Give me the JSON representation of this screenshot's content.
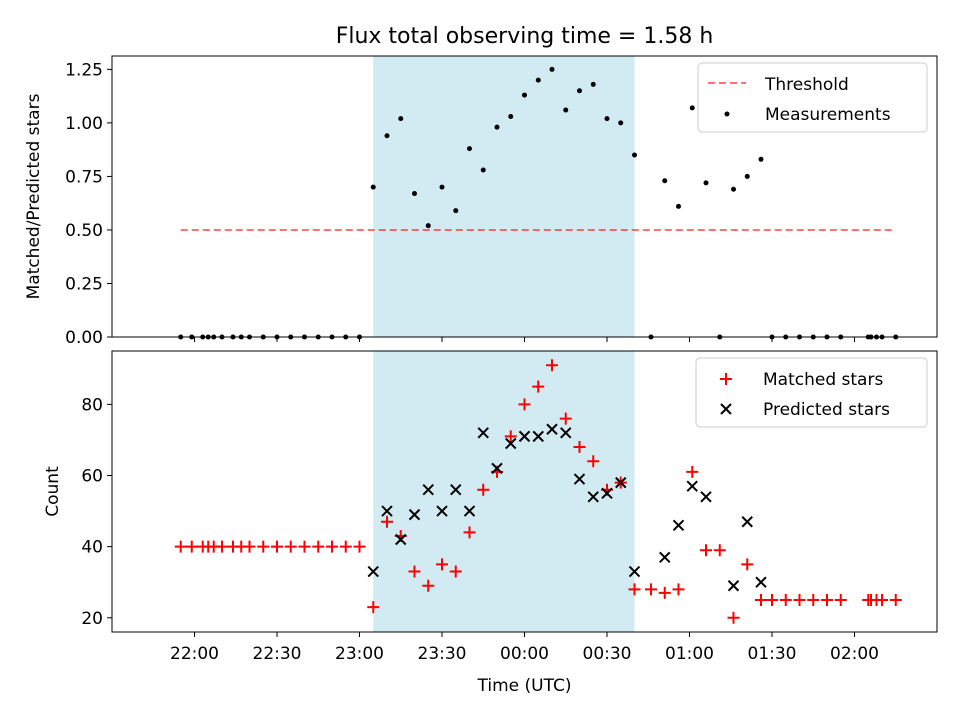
{
  "chart_data": [
    {
      "type": "scatter",
      "title": "Flux total observing time = 1.58 h",
      "xlabel": "",
      "ylabel": "Matched/Predicted stars",
      "ylim": [
        0,
        1.3125
      ],
      "y_ticks": [
        0,
        0.25,
        0.5,
        0.75,
        1.0,
        1.25
      ],
      "y_tick_labels": [
        "0.00",
        "0.25",
        "0.50",
        "0.75",
        "1.00",
        "1.25"
      ],
      "legend": {
        "position": "top-right",
        "entries": [
          "Threshold",
          "Measurements"
        ]
      },
      "colors": {
        "threshold": "#ff0000",
        "measurements": "#000000",
        "observing_window": "#add8e6"
      },
      "observing_window": {
        "start": "23:05",
        "end": "00:40"
      },
      "threshold": {
        "name": "Threshold",
        "value": 0.5,
        "x_start": "21:55",
        "x_end": "02:15"
      },
      "series": [
        {
          "name": "Measurements",
          "x": [
            "21:55",
            "21:59",
            "22:03",
            "22:05",
            "22:07",
            "22:10",
            "22:14",
            "22:17",
            "22:20",
            "22:25",
            "22:30",
            "22:35",
            "22:40",
            "22:45",
            "22:50",
            "22:55",
            "23:00",
            "23:05",
            "23:10",
            "23:15",
            "23:20",
            "23:25",
            "23:30",
            "23:35",
            "23:40",
            "23:45",
            "23:50",
            "23:55",
            "00:00",
            "00:05",
            "00:10",
            "00:15",
            "00:20",
            "00:25",
            "00:30",
            "00:35",
            "00:40",
            "00:46",
            "00:51",
            "00:56",
            "01:01",
            "01:06",
            "01:11",
            "01:16",
            "01:21",
            "01:26",
            "01:30",
            "01:35",
            "01:40",
            "01:45",
            "01:50",
            "01:55",
            "02:05",
            "02:06",
            "02:08",
            "02:10",
            "02:15"
          ],
          "values": [
            0,
            0,
            0,
            0,
            0,
            0,
            0,
            0,
            0,
            0,
            0,
            0,
            0,
            0,
            0,
            0,
            0,
            0.7,
            0.94,
            1.02,
            0.67,
            0.52,
            0.7,
            0.59,
            0.88,
            0.78,
            0.98,
            1.03,
            1.13,
            1.2,
            1.25,
            1.06,
            1.15,
            1.18,
            1.02,
            1.0,
            0.85,
            0,
            0.73,
            0.61,
            1.07,
            0.72,
            0,
            0.69,
            0.75,
            0.83,
            0,
            0,
            0,
            0,
            0,
            0,
            0,
            0,
            0,
            0,
            0
          ]
        }
      ]
    },
    {
      "type": "scatter",
      "title": "",
      "xlabel": "Time (UTC)",
      "ylabel": "Count",
      "ylim": [
        16,
        95
      ],
      "y_ticks": [
        20,
        40,
        60,
        80
      ],
      "y_tick_labels": [
        "20",
        "40",
        "60",
        "80"
      ],
      "x_ticks": [
        "22:00",
        "22:30",
        "23:00",
        "23:30",
        "00:00",
        "00:30",
        "01:00",
        "01:30",
        "02:00"
      ],
      "x_tick_labels": [
        "22:00",
        "22:30",
        "23:00",
        "23:30",
        "00:00",
        "00:30",
        "01:00",
        "01:30",
        "02:00"
      ],
      "legend": {
        "position": "top-right",
        "entries": [
          "Matched stars",
          "Predicted stars"
        ]
      },
      "colors": {
        "matched": "#ff0000",
        "predicted": "#000000",
        "observing_window": "#add8e6"
      },
      "observing_window": {
        "start": "23:05",
        "end": "00:40"
      },
      "series": [
        {
          "name": "Matched stars",
          "marker": "plus",
          "x": [
            "21:55",
            "21:59",
            "22:03",
            "22:05",
            "22:07",
            "22:10",
            "22:14",
            "22:17",
            "22:20",
            "22:25",
            "22:30",
            "22:35",
            "22:40",
            "22:45",
            "22:50",
            "22:55",
            "23:00",
            "23:05",
            "23:10",
            "23:15",
            "23:20",
            "23:25",
            "23:30",
            "23:35",
            "23:40",
            "23:45",
            "23:50",
            "23:55",
            "00:00",
            "00:05",
            "00:10",
            "00:15",
            "00:20",
            "00:25",
            "00:30",
            "00:35",
            "00:40",
            "00:46",
            "00:51",
            "00:56",
            "01:01",
            "01:06",
            "01:11",
            "01:16",
            "01:21",
            "01:26",
            "01:30",
            "01:35",
            "01:40",
            "01:45",
            "01:50",
            "01:55",
            "02:05",
            "02:06",
            "02:08",
            "02:10",
            "02:15"
          ],
          "values": [
            40,
            40,
            40,
            40,
            40,
            40,
            40,
            40,
            40,
            40,
            40,
            40,
            40,
            40,
            40,
            40,
            40,
            23,
            47,
            43,
            33,
            29,
            35,
            33,
            44,
            56,
            61,
            71,
            80,
            85,
            91,
            76,
            68,
            64,
            56,
            58,
            28,
            28,
            27,
            28,
            61,
            39,
            39,
            20,
            35,
            25,
            25,
            25,
            25,
            25,
            25,
            25,
            25,
            25,
            25,
            25,
            25
          ]
        },
        {
          "name": "Predicted stars",
          "marker": "x",
          "x": [
            "23:05",
            "23:10",
            "23:15",
            "23:20",
            "23:25",
            "23:30",
            "23:35",
            "23:40",
            "23:45",
            "23:50",
            "23:55",
            "00:00",
            "00:05",
            "00:10",
            "00:15",
            "00:20",
            "00:25",
            "00:30",
            "00:35",
            "00:40",
            "00:51",
            "00:56",
            "01:01",
            "01:06",
            "01:16",
            "01:21",
            "01:26"
          ],
          "values": [
            33,
            50,
            42,
            49,
            56,
            50,
            56,
            50,
            72,
            62,
            69,
            71,
            71,
            73,
            72,
            59,
            54,
            55,
            58,
            33,
            37,
            46,
            57,
            54,
            29,
            47,
            30
          ]
        }
      ]
    }
  ]
}
